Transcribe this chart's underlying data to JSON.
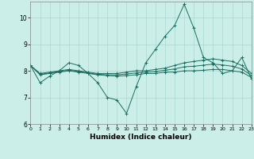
{
  "xlabel": "Humidex (Indice chaleur)",
  "background_color": "#cceee8",
  "grid_color": "#aad8d0",
  "line_color": "#1a6e60",
  "xlim": [
    0,
    23
  ],
  "ylim": [
    6.0,
    10.6
  ],
  "yticks": [
    6,
    7,
    8,
    9,
    10
  ],
  "xticks": [
    0,
    1,
    2,
    3,
    4,
    5,
    6,
    7,
    8,
    9,
    10,
    11,
    12,
    13,
    14,
    15,
    16,
    17,
    18,
    19,
    20,
    21,
    22,
    23
  ],
  "series": [
    [
      8.2,
      7.55,
      7.8,
      8.0,
      8.3,
      8.2,
      7.9,
      7.55,
      7.0,
      6.9,
      6.4,
      7.4,
      8.3,
      8.8,
      9.3,
      9.7,
      10.5,
      9.6,
      8.5,
      8.3,
      7.9,
      8.0,
      8.5,
      7.7
    ],
    [
      8.2,
      7.9,
      7.95,
      8.0,
      8.05,
      8.0,
      7.95,
      7.9,
      7.9,
      7.9,
      7.95,
      8.0,
      8.0,
      8.05,
      8.1,
      8.2,
      8.3,
      8.35,
      8.4,
      8.45,
      8.4,
      8.35,
      8.2,
      7.9
    ],
    [
      8.2,
      7.85,
      7.9,
      7.95,
      8.0,
      7.95,
      7.9,
      7.85,
      7.82,
      7.8,
      7.82,
      7.85,
      7.9,
      7.9,
      7.95,
      7.95,
      8.0,
      8.0,
      8.02,
      8.05,
      8.05,
      8.0,
      7.95,
      7.75
    ],
    [
      8.2,
      7.87,
      7.92,
      7.97,
      8.02,
      7.97,
      7.92,
      7.87,
      7.85,
      7.85,
      7.88,
      7.92,
      7.95,
      7.97,
      8.02,
      8.07,
      8.15,
      8.17,
      8.21,
      8.25,
      8.22,
      8.17,
      8.07,
      7.82
    ]
  ]
}
